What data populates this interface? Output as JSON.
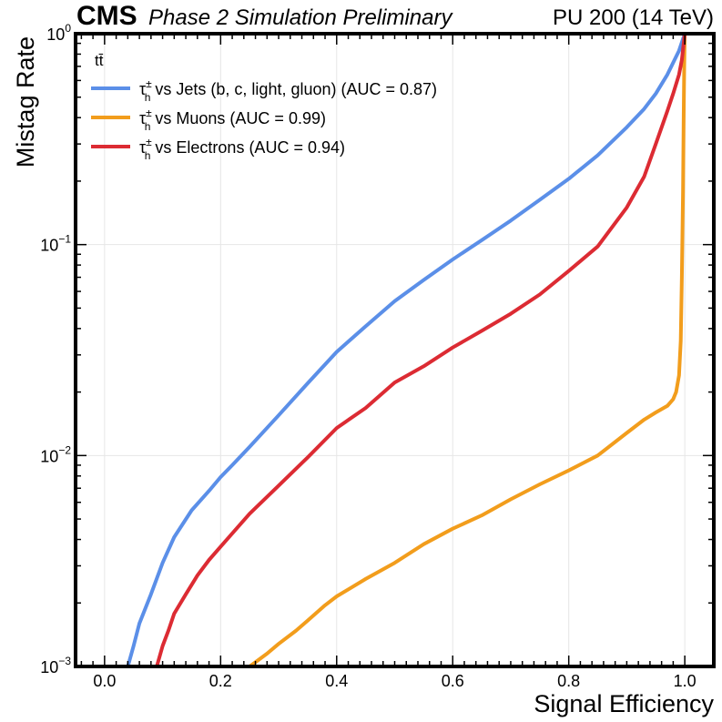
{
  "header": {
    "cms_label": "CMS",
    "subtitle": "Phase 2 Simulation Preliminary",
    "right_label": "PU 200 (14 TeV)"
  },
  "legend": {
    "title": "tt̄",
    "entries": [
      {
        "tau": "τ",
        "sub": "h",
        "sup": "±",
        "text": " vs Jets (b, c, light, gluon) (AUC = 0.87)",
        "color": "#5b8fe8"
      },
      {
        "tau": "τ",
        "sub": "h",
        "sup": "±",
        "text": " vs Muons (AUC = 0.99)",
        "color": "#f29d1c"
      },
      {
        "tau": "τ",
        "sub": "h",
        "sup": "±",
        "text": " vs Electrons (AUC = 0.94)",
        "color": "#dc2b33"
      }
    ]
  },
  "chart_data": {
    "type": "line",
    "title": "",
    "xlabel": "Signal Efficiency",
    "ylabel": "Mistag Rate",
    "xlim": [
      -0.05,
      1.05
    ],
    "ylim": [
      0.001,
      1.0
    ],
    "yscale": "log",
    "grid": true,
    "legend_position": "top-left",
    "xticks": [
      {
        "value": 0.0,
        "label": "0.0"
      },
      {
        "value": 0.2,
        "label": "0.2"
      },
      {
        "value": 0.4,
        "label": "0.4"
      },
      {
        "value": 0.6,
        "label": "0.6"
      },
      {
        "value": 0.8,
        "label": "0.8"
      },
      {
        "value": 1.0,
        "label": "1.0"
      }
    ],
    "yticks": [
      {
        "value": 0.001,
        "base": "10",
        "exp": "−3"
      },
      {
        "value": 0.01,
        "base": "10",
        "exp": "−2"
      },
      {
        "value": 0.1,
        "base": "10",
        "exp": "−1"
      },
      {
        "value": 1.0,
        "base": "10",
        "exp": "0"
      }
    ],
    "series": [
      {
        "name": "τh± vs Jets (b, c, light, gluon) (AUC = 0.87)",
        "color": "#5b8fe8",
        "x": [
          0.04,
          0.05,
          0.06,
          0.08,
          0.1,
          0.12,
          0.15,
          0.18,
          0.2,
          0.22,
          0.25,
          0.3,
          0.35,
          0.4,
          0.45,
          0.5,
          0.55,
          0.6,
          0.65,
          0.7,
          0.75,
          0.8,
          0.85,
          0.9,
          0.93,
          0.95,
          0.97,
          0.98,
          0.99,
          1.0
        ],
        "y": [
          0.001,
          0.00125,
          0.0016,
          0.0022,
          0.0031,
          0.0041,
          0.0055,
          0.0068,
          0.0079,
          0.009,
          0.011,
          0.0155,
          0.022,
          0.031,
          0.041,
          0.054,
          0.068,
          0.085,
          0.105,
          0.13,
          0.163,
          0.205,
          0.265,
          0.36,
          0.44,
          0.52,
          0.64,
          0.73,
          0.83,
          1.0
        ]
      },
      {
        "name": "τh± vs Muons (AUC = 0.99)",
        "color": "#f29d1c",
        "x": [
          0.25,
          0.28,
          0.3,
          0.33,
          0.35,
          0.38,
          0.4,
          0.45,
          0.5,
          0.55,
          0.6,
          0.65,
          0.7,
          0.75,
          0.8,
          0.85,
          0.9,
          0.93,
          0.95,
          0.97,
          0.98,
          0.985,
          0.99,
          0.993,
          0.995,
          0.997,
          0.998,
          0.999,
          1.0
        ],
        "y": [
          0.001,
          0.00115,
          0.00128,
          0.00148,
          0.00165,
          0.00195,
          0.00215,
          0.0026,
          0.0031,
          0.0038,
          0.0045,
          0.0052,
          0.0062,
          0.0073,
          0.0085,
          0.01,
          0.0128,
          0.0148,
          0.016,
          0.0172,
          0.0185,
          0.02,
          0.024,
          0.035,
          0.07,
          0.18,
          0.4,
          0.7,
          1.0
        ]
      },
      {
        "name": "τh± vs Electrons (AUC = 0.94)",
        "color": "#dc2b33",
        "x": [
          0.09,
          0.1,
          0.11,
          0.12,
          0.14,
          0.16,
          0.18,
          0.2,
          0.25,
          0.3,
          0.35,
          0.4,
          0.45,
          0.5,
          0.55,
          0.6,
          0.65,
          0.7,
          0.75,
          0.8,
          0.85,
          0.9,
          0.93,
          0.95,
          0.97,
          0.98,
          0.99,
          0.995,
          1.0
        ],
        "y": [
          0.001,
          0.00125,
          0.00148,
          0.00178,
          0.0022,
          0.0027,
          0.0032,
          0.0037,
          0.0053,
          0.0072,
          0.0098,
          0.0135,
          0.0168,
          0.0222,
          0.0265,
          0.0325,
          0.039,
          0.047,
          0.058,
          0.075,
          0.098,
          0.15,
          0.21,
          0.3,
          0.43,
          0.52,
          0.64,
          0.75,
          1.0
        ]
      }
    ]
  }
}
